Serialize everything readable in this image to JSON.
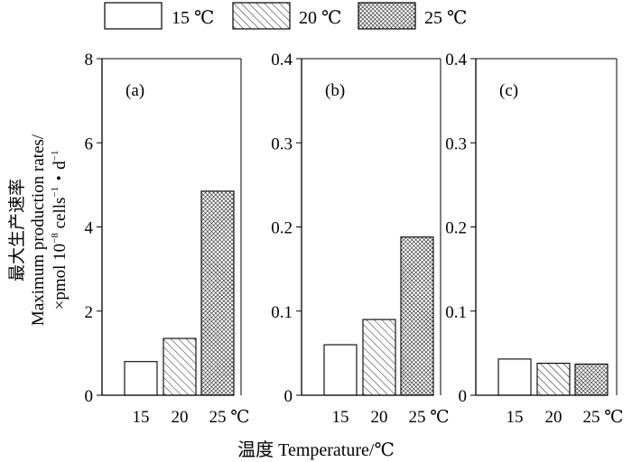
{
  "legend": {
    "items": [
      {
        "label": "15 ℃",
        "pattern": "none"
      },
      {
        "label": "20 ℃",
        "pattern": "sparse-diagonal"
      },
      {
        "label": "25 ℃",
        "pattern": "dense-crosshatch"
      }
    ]
  },
  "ylabel": {
    "line1": "最大生产速率",
    "line2": "Maximum production rates/",
    "line3_prefix": "×pmol 10",
    "line3_sup1": "−8",
    "line3_mid": " cells",
    "line3_sup2": "−1",
    "line3_mid2": "・d",
    "line3_sup3": "−1"
  },
  "xlabel": "温度 Temperature/℃",
  "chart_data": [
    {
      "type": "bar",
      "panel_label": "(a)",
      "categories": [
        "15",
        "20",
        "25 ℃"
      ],
      "values": [
        0.8,
        1.35,
        4.85
      ],
      "ylim": [
        0,
        8
      ],
      "yticks": [
        "0",
        "2",
        "4",
        "6",
        "8"
      ],
      "ytick_values": [
        0,
        2,
        4,
        6,
        8
      ]
    },
    {
      "type": "bar",
      "panel_label": "(b)",
      "categories": [
        "15",
        "20",
        "25 ℃"
      ],
      "values": [
        0.06,
        0.09,
        0.188
      ],
      "ylim": [
        0,
        0.4
      ],
      "yticks": [
        "0",
        "0.1",
        "0.2",
        "0.3",
        "0.4"
      ],
      "ytick_values": [
        0,
        0.1,
        0.2,
        0.3,
        0.4
      ]
    },
    {
      "type": "bar",
      "panel_label": "(c)",
      "categories": [
        "15",
        "20",
        "25 ℃"
      ],
      "values": [
        0.043,
        0.038,
        0.037
      ],
      "ylim": [
        0,
        0.4
      ],
      "yticks": [
        "0",
        "0.1",
        "0.2",
        "0.3",
        "0.4"
      ],
      "ytick_values": [
        0,
        0.1,
        0.2,
        0.3,
        0.4
      ]
    }
  ]
}
